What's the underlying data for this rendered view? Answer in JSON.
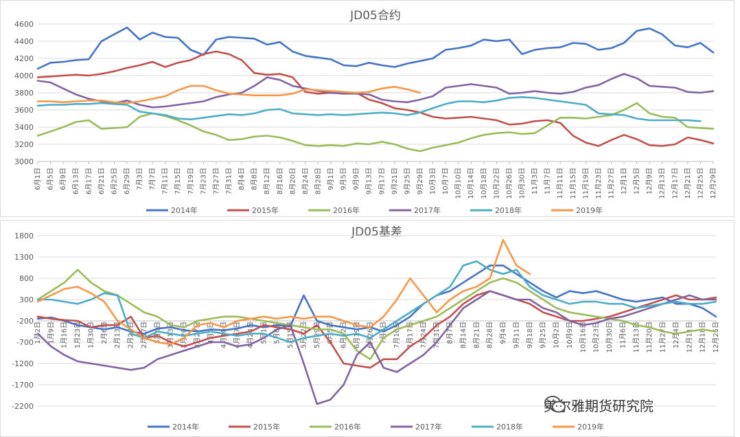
{
  "chart_data": [
    {
      "type": "line",
      "title": "JD05合约",
      "ylim": [
        3000,
        4600
      ],
      "yticks": [
        3000,
        3200,
        3400,
        3600,
        3800,
        4000,
        4200,
        4400,
        4600
      ],
      "x_tick_labels": [
        "6月1日",
        "6月5日",
        "6月9日",
        "6月13日",
        "6月17日",
        "6月21日",
        "6月25日",
        "6月29日",
        "7月3日",
        "7月7日",
        "7月11日",
        "7月15日",
        "7月19日",
        "7月23日",
        "7月27日",
        "7月31日",
        "8月4日",
        "8月8日",
        "8月12日",
        "8月16日",
        "8月20日",
        "8月24日",
        "8月28日",
        "9月1日",
        "9月5日",
        "9月9日",
        "9月13日",
        "9月17日",
        "9月21日",
        "9月25日",
        "9月29日",
        "10月3日",
        "10月7日",
        "10月10日",
        "10月14日",
        "10月18日",
        "10月22日",
        "10月26日",
        "10月30日",
        "11月3日",
        "11月7日",
        "11月11日",
        "11月15日",
        "11月19日",
        "11月23日",
        "11月27日",
        "12月1日",
        "12月5日",
        "12月9日",
        "12月13日",
        "12月17日",
        "12月21日",
        "12月25日",
        "12月29日"
      ],
      "legend_position": "bottom",
      "x_count": 54,
      "series": [
        {
          "name": "2014年",
          "color": "#4472c4",
          "values": [
            4080,
            4150,
            4160,
            4180,
            4190,
            4400,
            4480,
            4560,
            4420,
            4500,
            4450,
            4440,
            4300,
            4240,
            4420,
            4450,
            4440,
            4430,
            4360,
            4390,
            4280,
            4230,
            4210,
            4190,
            4120,
            4110,
            4150,
            4120,
            4100,
            4140,
            4170,
            4200,
            4300,
            4320,
            4350,
            4420,
            4400,
            4420,
            4250,
            4300,
            4320,
            4330,
            4380,
            4370,
            4300,
            4320,
            4380,
            4520,
            4550,
            4480,
            4350,
            4330,
            4380,
            4270
          ]
        },
        {
          "name": "2015年",
          "color": "#c0504d",
          "values": [
            3980,
            3990,
            4000,
            4010,
            4000,
            4020,
            4050,
            4090,
            4120,
            4160,
            4100,
            4150,
            4180,
            4250,
            4280,
            4250,
            4180,
            4030,
            4010,
            4020,
            3980,
            3810,
            3790,
            3800,
            3790,
            3800,
            3720,
            3680,
            3620,
            3600,
            3570,
            3520,
            3500,
            3510,
            3520,
            3500,
            3480,
            3430,
            3440,
            3470,
            3480,
            3450,
            3300,
            3220,
            3180,
            3250,
            3310,
            3260,
            3190,
            3180,
            3200,
            3280,
            3250,
            3210
          ]
        },
        {
          "name": "2016年",
          "color": "#9bbb59",
          "values": [
            3300,
            3350,
            3400,
            3460,
            3480,
            3380,
            3390,
            3400,
            3520,
            3560,
            3530,
            3480,
            3420,
            3350,
            3310,
            3250,
            3260,
            3290,
            3300,
            3280,
            3240,
            3190,
            3180,
            3190,
            3180,
            3210,
            3200,
            3230,
            3200,
            3150,
            3120,
            3160,
            3190,
            3220,
            3270,
            3310,
            3330,
            3340,
            3320,
            3330,
            3420,
            3510,
            3510,
            3500,
            3520,
            3540,
            3600,
            3680,
            3560,
            3520,
            3510,
            3400,
            3390,
            3380
          ]
        },
        {
          "name": "2017年",
          "color": "#8064a2",
          "values": [
            3940,
            3920,
            3850,
            3780,
            3730,
            3700,
            3680,
            3710,
            3660,
            3630,
            3640,
            3660,
            3680,
            3700,
            3750,
            3780,
            3800,
            3880,
            3980,
            3950,
            3880,
            3850,
            3820,
            3800,
            3790,
            3790,
            3780,
            3720,
            3700,
            3690,
            3720,
            3760,
            3860,
            3880,
            3900,
            3880,
            3860,
            3790,
            3800,
            3820,
            3800,
            3790,
            3810,
            3860,
            3890,
            3960,
            4020,
            3970,
            3880,
            3870,
            3860,
            3810,
            3800,
            3820
          ]
        },
        {
          "name": "2018年",
          "color": "#4bacc6",
          "values": [
            3650,
            3660,
            3660,
            3670,
            3670,
            3680,
            3670,
            3660,
            3580,
            3560,
            3540,
            3500,
            3490,
            3510,
            3530,
            3550,
            3540,
            3560,
            3600,
            3610,
            3560,
            3550,
            3540,
            3550,
            3540,
            3550,
            3560,
            3570,
            3560,
            3540,
            3570,
            3620,
            3670,
            3700,
            3700,
            3690,
            3710,
            3740,
            3750,
            3740,
            3720,
            3700,
            3680,
            3660,
            3560,
            3550,
            3540,
            3500,
            3480,
            3480,
            3480,
            3480,
            3470,
            null
          ]
        },
        {
          "name": "2019年",
          "color": "#f79646",
          "values": [
            3700,
            3700,
            3690,
            3700,
            3710,
            3710,
            3690,
            3680,
            3700,
            3730,
            3760,
            3830,
            3880,
            3880,
            3830,
            3790,
            3780,
            3770,
            3770,
            3770,
            3790,
            3840,
            3830,
            3820,
            3810,
            3800,
            3810,
            3850,
            3870,
            3840,
            3800,
            null,
            null,
            null,
            null,
            null,
            null,
            null,
            null,
            null,
            null,
            null,
            null,
            null,
            null,
            null,
            null,
            null,
            null,
            null,
            null,
            null,
            null,
            null
          ]
        }
      ]
    },
    {
      "type": "line",
      "title": "JD05基差",
      "ylim": [
        -2200,
        1800
      ],
      "yticks": [
        -2200,
        -1700,
        -1200,
        -700,
        -200,
        300,
        800,
        1300,
        1800
      ],
      "x_tick_labels": [
        "1月2日",
        "1月9日",
        "1月16日",
        "1月23日",
        "1月30日",
        "2月6日",
        "2月13日",
        "2月20日",
        "2月27日",
        "3月6日",
        "3月13日",
        "3月20日",
        "3月27日",
        "4月3日",
        "4月10日",
        "4月17日",
        "4月24日",
        "5月1日",
        "5月8日",
        "5月15日",
        "5月22日",
        "5月29日",
        "6月5日",
        "6月12日",
        "6月19日",
        "6月26日",
        "7月3日",
        "7月10日",
        "7月17日",
        "7月24日",
        "7月31日",
        "8月7日",
        "8月14日",
        "8月21日",
        "8月28日",
        "9月4日",
        "9月11日",
        "9月18日",
        "9月25日",
        "10月2日",
        "10月9日",
        "10月16日",
        "10月23日",
        "10月30日",
        "11月6日",
        "11月13日",
        "11月20日",
        "11月27日",
        "12月4日",
        "12月11日",
        "12月18日",
        "12月25日"
      ],
      "legend_position": "bottom",
      "x_count": 52,
      "series": [
        {
          "name": "2014年",
          "color": "#4472c4",
          "values": [
            -150,
            -120,
            -200,
            -300,
            -350,
            -400,
            -350,
            -450,
            -500,
            -380,
            -350,
            -420,
            -450,
            -400,
            -420,
            -380,
            -300,
            -350,
            -300,
            -320,
            400,
            -200,
            -300,
            -350,
            -400,
            -350,
            -450,
            -300,
            -100,
            200,
            400,
            500,
            700,
            900,
            1100,
            1100,
            900,
            700,
            500,
            350,
            500,
            450,
            500,
            400,
            300,
            250,
            300,
            350,
            200,
            200,
            100,
            -100
          ]
        },
        {
          "name": "2015年",
          "color": "#c0504d",
          "values": [
            -100,
            -150,
            -180,
            -200,
            -350,
            -300,
            -300,
            -100,
            -600,
            -550,
            -700,
            -800,
            -700,
            -600,
            -550,
            -500,
            -450,
            -300,
            -350,
            -400,
            -500,
            -300,
            -700,
            -1200,
            -1250,
            -1300,
            -1100,
            -1100,
            -800,
            -600,
            -300,
            -100,
            200,
            400,
            500,
            400,
            300,
            200,
            0,
            -100,
            -200,
            -200,
            -150,
            -100,
            0,
            100,
            200,
            300,
            400,
            300,
            300,
            350
          ]
        },
        {
          "name": "2016年",
          "color": "#9bbb59",
          "values": [
            300,
            500,
            700,
            1000,
            700,
            500,
            400,
            200,
            0,
            -100,
            -300,
            -350,
            -200,
            -150,
            -100,
            -100,
            -150,
            -200,
            -250,
            -300,
            -350,
            -400,
            -400,
            -500,
            -900,
            -1100,
            -600,
            -400,
            -300,
            -200,
            -100,
            100,
            300,
            500,
            700,
            800,
            700,
            500,
            300,
            100,
            0,
            -50,
            -100,
            -150,
            -200,
            -300,
            -350,
            -450,
            -500,
            -450,
            -400,
            -450
          ]
        },
        {
          "name": "2017年",
          "color": "#8064a2",
          "values": [
            -500,
            -800,
            -1000,
            -1150,
            -1200,
            -1250,
            -1300,
            -1350,
            -1300,
            -1100,
            -1000,
            -900,
            -800,
            -700,
            -700,
            -800,
            -750,
            -600,
            -400,
            -300,
            -1200,
            -2150,
            -2050,
            -1700,
            -1000,
            -700,
            -1300,
            -1400,
            -1200,
            -1000,
            -700,
            -300,
            100,
            300,
            500,
            400,
            300,
            300,
            100,
            0,
            -200,
            -300,
            -250,
            -150,
            -100,
            0,
            100,
            200,
            300,
            400,
            300,
            300
          ]
        },
        {
          "name": "2018年",
          "color": "#4bacc6",
          "values": [
            300,
            300,
            250,
            200,
            300,
            450,
            400,
            -500,
            -600,
            -450,
            -500,
            -550,
            -500,
            -450,
            -500,
            -550,
            -500,
            -500,
            -600,
            -700,
            -600,
            -550,
            -500,
            -550,
            -500,
            -600,
            -400,
            -200,
            0,
            200,
            400,
            600,
            1100,
            1200,
            1000,
            900,
            1000,
            600,
            400,
            300,
            200,
            250,
            250,
            200,
            200,
            100,
            150,
            200,
            250,
            200,
            200,
            250
          ]
        },
        {
          "name": "2019年",
          "color": "#f79646",
          "values": [
            250,
            400,
            550,
            600,
            450,
            250,
            -200,
            -400,
            -600,
            -700,
            -750,
            -600,
            -300,
            -250,
            -350,
            -200,
            -150,
            -100,
            -150,
            -100,
            -150,
            -100,
            -100,
            -200,
            -300,
            -350,
            -100,
            300,
            800,
            400,
            0,
            300,
            500,
            600,
            800,
            1700,
            1100,
            900,
            null,
            null,
            null,
            null,
            null,
            null,
            null,
            null,
            null,
            null,
            null,
            null,
            null,
            null
          ]
        }
      ]
    }
  ],
  "watermark": {
    "icon": "wechat-icon",
    "text": "美尔雅期货研究院"
  }
}
